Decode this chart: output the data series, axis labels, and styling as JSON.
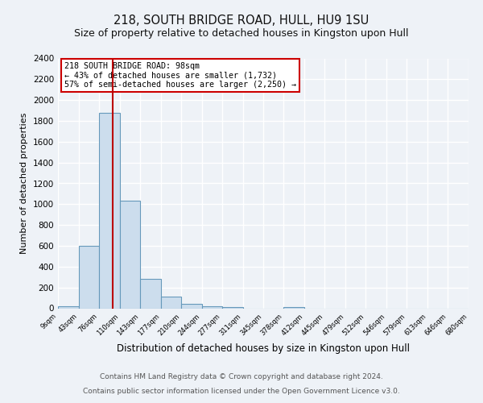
{
  "title": "218, SOUTH BRIDGE ROAD, HULL, HU9 1SU",
  "subtitle": "Size of property relative to detached houses in Kingston upon Hull",
  "xlabel": "Distribution of detached houses by size in Kingston upon Hull",
  "ylabel": "Number of detached properties",
  "bin_edges": [
    9,
    43,
    76,
    110,
    143,
    177,
    210,
    244,
    277,
    311,
    345,
    378,
    412,
    445,
    479,
    512,
    546,
    579,
    613,
    646,
    680
  ],
  "bin_counts": [
    20,
    600,
    1880,
    1035,
    280,
    110,
    45,
    20,
    10,
    0,
    0,
    15,
    0,
    0,
    0,
    0,
    0,
    0,
    0,
    0
  ],
  "bar_color": "#ccdded",
  "bar_edge_color": "#6699bb",
  "vline_x": 98,
  "vline_color": "#bb0000",
  "ylim": [
    0,
    2400
  ],
  "yticks": [
    0,
    200,
    400,
    600,
    800,
    1000,
    1200,
    1400,
    1600,
    1800,
    2000,
    2200,
    2400
  ],
  "annotation_title": "218 SOUTH BRIDGE ROAD: 98sqm",
  "annotation_line1": "← 43% of detached houses are smaller (1,732)",
  "annotation_line2": "57% of semi-detached houses are larger (2,250) →",
  "annotation_box_color": "#ffffff",
  "annotation_box_edge": "#cc0000",
  "footnote1": "Contains HM Land Registry data © Crown copyright and database right 2024.",
  "footnote2": "Contains public sector information licensed under the Open Government Licence v3.0.",
  "background_color": "#eef2f7",
  "grid_color": "#ffffff",
  "title_fontsize": 10.5,
  "subtitle_fontsize": 9,
  "xlabel_fontsize": 8.5,
  "ylabel_fontsize": 8,
  "footnote_fontsize": 6.5
}
